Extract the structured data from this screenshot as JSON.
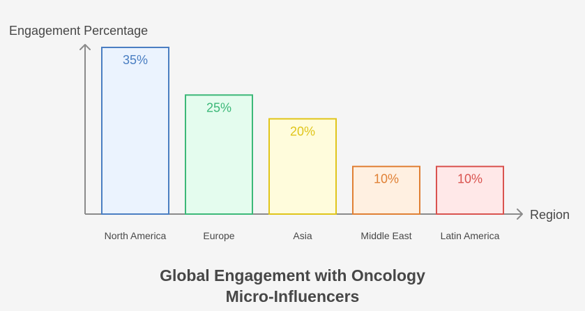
{
  "chart_data": {
    "type": "bar",
    "title_lines": [
      "Global Engagement with Oncology",
      "Micro-Influencers"
    ],
    "xlabel": "Region",
    "ylabel": "Engagement Percentage",
    "categories": [
      "North America",
      "Europe",
      "Asia",
      "Middle East",
      "Latin America"
    ],
    "values": [
      35,
      25,
      20,
      10,
      10
    ],
    "value_labels": [
      "35%",
      "25%",
      "20%",
      "10%",
      "10%"
    ],
    "ylim": [
      0,
      35
    ],
    "grid": false,
    "legend": "none",
    "colors": [
      {
        "stroke": "#4a7ec2",
        "fill": "#ebf3fe",
        "text": "#4a7ec2"
      },
      {
        "stroke": "#3cb878",
        "fill": "#e4fcee",
        "text": "#3cb878"
      },
      {
        "stroke": "#e0c51a",
        "fill": "#fffcdc",
        "text": "#e0c51a"
      },
      {
        "stroke": "#e08034",
        "fill": "#fff0e1",
        "text": "#e08034"
      },
      {
        "stroke": "#d9534f",
        "fill": "#ffe8e8",
        "text": "#d9534f"
      }
    ],
    "axis_color": "#8a8a8a",
    "text_color": "#474747"
  }
}
